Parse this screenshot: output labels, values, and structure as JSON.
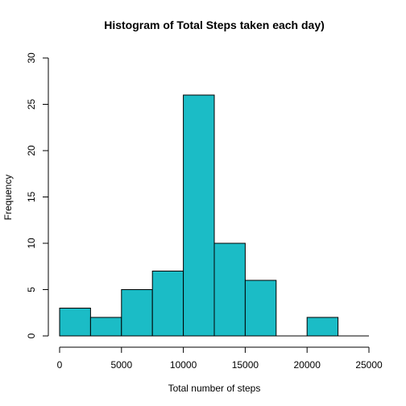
{
  "chart_data": {
    "type": "bar",
    "title": "Histogram of Total Steps taken each day)",
    "xlabel": "Total number of steps",
    "ylabel": "Frequency",
    "bin_edges": [
      0,
      2500,
      5000,
      7500,
      10000,
      12500,
      15000,
      17500,
      20000,
      22500,
      25000
    ],
    "values": [
      3,
      2,
      5,
      7,
      26,
      10,
      6,
      0,
      2,
      0
    ],
    "xlim": [
      0,
      25000
    ],
    "ylim": [
      0,
      30
    ],
    "x_ticks": [
      0,
      5000,
      10000,
      15000,
      20000,
      25000
    ],
    "y_ticks": [
      0,
      5,
      10,
      15,
      20,
      25,
      30
    ],
    "bar_color": "#1bbcc6",
    "grid": false
  }
}
